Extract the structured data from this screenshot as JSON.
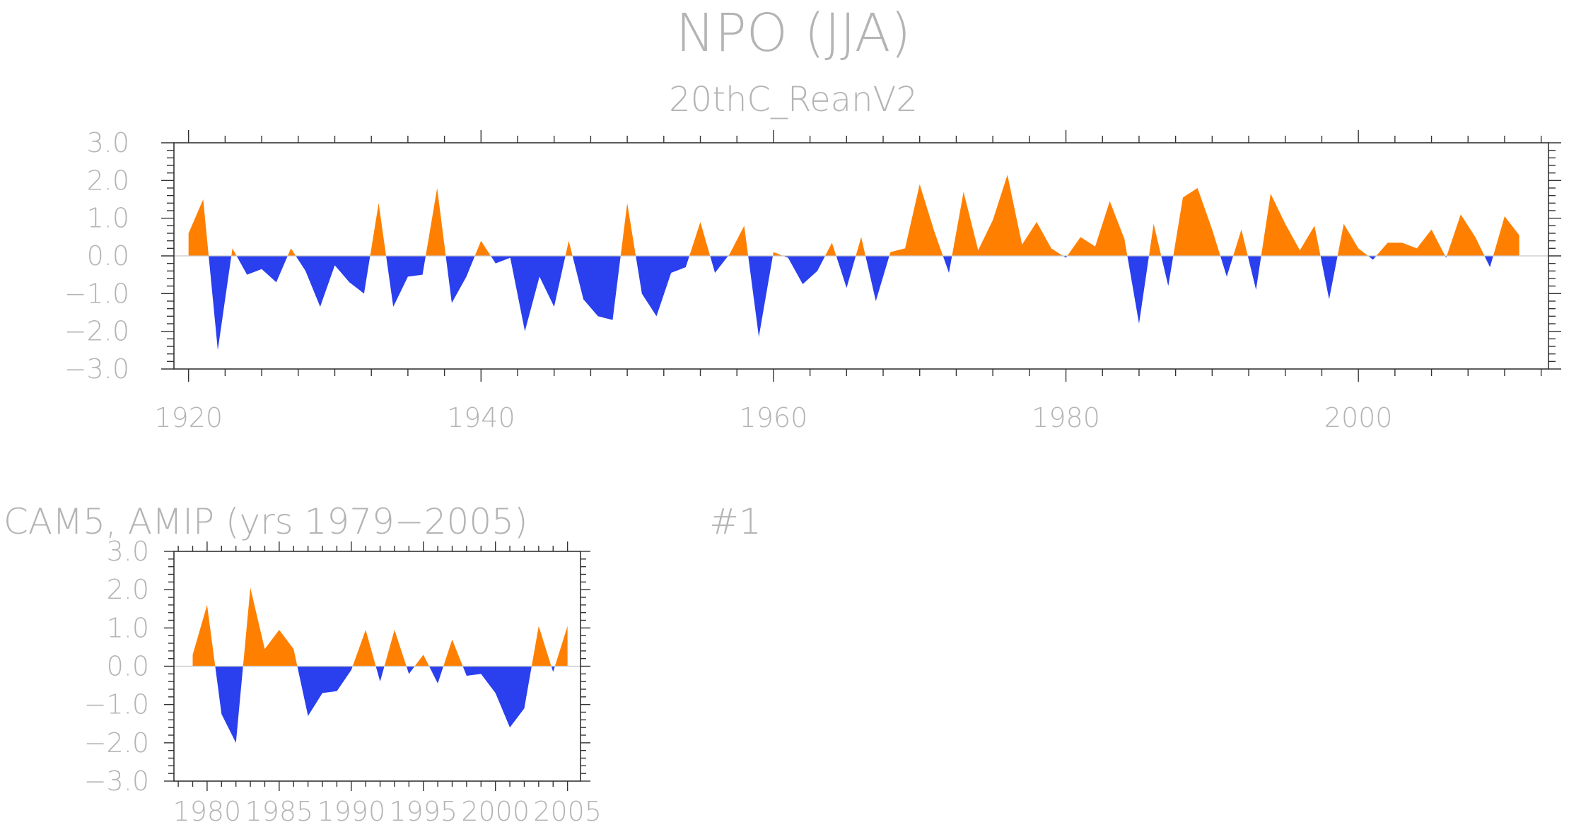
{
  "figure": {
    "title": "NPO (JJA)",
    "colors": {
      "positive": "#ff8000",
      "negative": "#2a3fee",
      "text": "#b4b4b4",
      "frame": "#333333"
    }
  },
  "chart_data": [
    {
      "type": "area",
      "subtitle": "20thC_ReanV2",
      "xlim": [
        1920,
        2012
      ],
      "ylim": [
        -3,
        3
      ],
      "x_ticks": [
        1920,
        1940,
        1960,
        1980,
        2000
      ],
      "x_tick_labels": [
        "1920",
        "1940",
        "1960",
        "1980",
        "2000"
      ],
      "y_ticks": [
        3,
        2,
        1,
        0,
        -1,
        -2,
        -3
      ],
      "y_tick_labels": [
        "3.0",
        "2.0",
        "1.0",
        "0.0",
        "−1.0",
        "−2.0",
        "−3.0"
      ],
      "x": [
        1920,
        1921,
        1922,
        1923,
        1924,
        1925,
        1926,
        1927,
        1928,
        1929,
        1930,
        1931,
        1932,
        1933,
        1934,
        1935,
        1936,
        1937,
        1938,
        1939,
        1940,
        1941,
        1942,
        1943,
        1944,
        1945,
        1946,
        1947,
        1948,
        1949,
        1950,
        1951,
        1952,
        1953,
        1954,
        1955,
        1956,
        1957,
        1958,
        1959,
        1960,
        1961,
        1962,
        1963,
        1964,
        1965,
        1966,
        1967,
        1968,
        1969,
        1970,
        1971,
        1972,
        1973,
        1974,
        1975,
        1976,
        1977,
        1978,
        1979,
        1980,
        1981,
        1982,
        1983,
        1984,
        1985,
        1986,
        1987,
        1988,
        1989,
        1990,
        1991,
        1992,
        1993,
        1994,
        1995,
        1996,
        1997,
        1998,
        1999,
        2000,
        2001,
        2002,
        2003,
        2004,
        2005,
        2006,
        2007,
        2008,
        2009,
        2010,
        2011
      ],
      "values": [
        0.6,
        1.5,
        -2.5,
        0.2,
        -0.5,
        -0.35,
        -0.7,
        0.2,
        -0.4,
        -1.35,
        -0.25,
        -0.7,
        -1.0,
        1.4,
        -1.35,
        -0.55,
        -0.5,
        1.8,
        -1.25,
        -0.55,
        0.4,
        -0.2,
        -0.05,
        -2.0,
        -0.55,
        -1.35,
        0.4,
        -1.15,
        -1.6,
        -1.7,
        1.4,
        -1.0,
        -1.6,
        -0.45,
        -0.3,
        0.9,
        -0.45,
        0.05,
        0.8,
        -2.15,
        0.1,
        -0.05,
        -0.75,
        -0.4,
        0.35,
        -0.85,
        0.5,
        -1.2,
        0.1,
        0.2,
        1.9,
        0.65,
        -0.45,
        1.7,
        0.15,
        0.95,
        2.15,
        0.3,
        0.9,
        0.2,
        -0.05,
        0.5,
        0.25,
        1.45,
        0.45,
        -1.8,
        0.85,
        -0.8,
        1.55,
        1.8,
        0.7,
        -0.55,
        0.7,
        -0.9,
        1.65,
        0.85,
        0.15,
        0.8,
        -1.15,
        0.85,
        0.2,
        -0.1,
        0.35,
        0.35,
        0.2,
        0.7,
        -0.05,
        1.1,
        0.5,
        -0.3,
        1.05,
        0.55
      ]
    },
    {
      "type": "area",
      "subtitle": "CAM5, AMIP (yrs 1979−2005)",
      "label": "#1",
      "xlim": [
        1979,
        2005
      ],
      "ylim": [
        -3,
        3
      ],
      "x_ticks": [
        1980,
        1985,
        1990,
        1995,
        2000,
        2005
      ],
      "x_tick_labels": [
        "1980",
        "1985",
        "1990",
        "1995",
        "2000",
        "2005"
      ],
      "y_ticks": [
        3,
        2,
        1,
        0,
        -1,
        -2,
        -3
      ],
      "y_tick_labels": [
        "3.0",
        "2.0",
        "1.0",
        "0.0",
        "−1.0",
        "−2.0",
        "−3.0"
      ],
      "x": [
        1979,
        1980,
        1981,
        1982,
        1983,
        1984,
        1985,
        1986,
        1987,
        1988,
        1989,
        1990,
        1991,
        1992,
        1993,
        1994,
        1995,
        1996,
        1997,
        1998,
        1999,
        2000,
        2001,
        2002,
        2003,
        2004,
        2005
      ],
      "values": [
        0.3,
        1.6,
        -1.25,
        -2.0,
        2.05,
        0.45,
        0.95,
        0.45,
        -1.3,
        -0.7,
        -0.65,
        -0.1,
        0.95,
        -0.4,
        0.95,
        -0.2,
        0.3,
        -0.45,
        0.7,
        -0.25,
        -0.2,
        -0.7,
        -1.6,
        -1.1,
        1.05,
        -0.15,
        1.05
      ]
    }
  ]
}
